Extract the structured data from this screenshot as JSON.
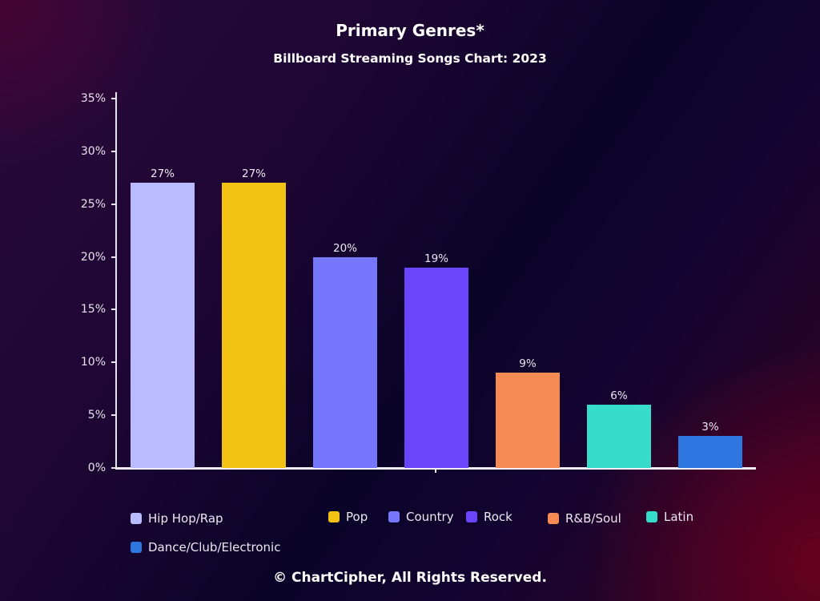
{
  "chart_data": {
    "type": "bar",
    "title": "Primary Genres*",
    "subtitle": "Billboard Streaming Songs Chart: 2023",
    "xlabel": "",
    "ylabel": "",
    "ylim": [
      0,
      35
    ],
    "yticks": [
      "0%",
      "5%",
      "10%",
      "15%",
      "20%",
      "25%",
      "30%",
      "35%"
    ],
    "grid": false,
    "legend_position": "bottom",
    "categories": [
      "Hip Hop/Rap",
      "Pop",
      "Country",
      "Rock",
      "R&B/Soul",
      "Latin",
      "Dance/Club/Electronic"
    ],
    "values": [
      27,
      27,
      20,
      19,
      9,
      6,
      3
    ],
    "value_labels": [
      "27%",
      "27%",
      "20%",
      "19%",
      "9%",
      "6%",
      "3%"
    ],
    "colors": [
      "#babaff",
      "#f2c314",
      "#7578fc",
      "#6a45fc",
      "#f68a55",
      "#38dccb",
      "#2f77e0"
    ],
    "footer": "© ChartCipher, All Rights Reserved."
  }
}
